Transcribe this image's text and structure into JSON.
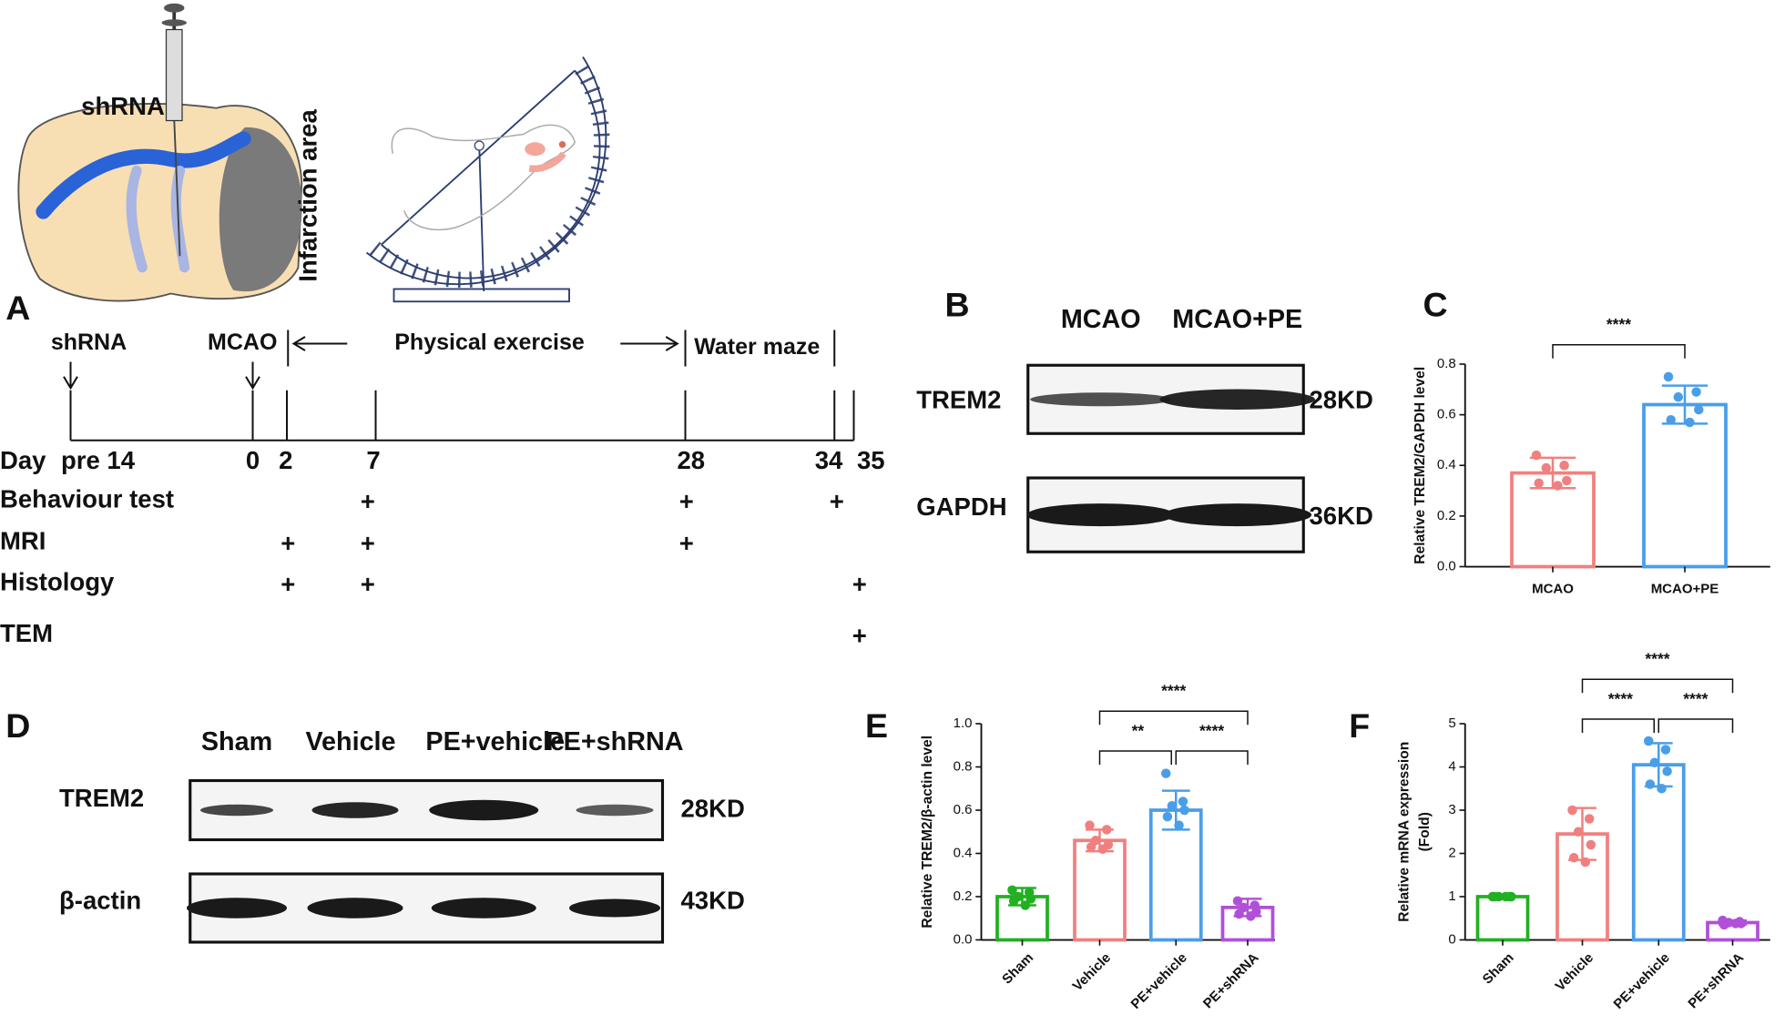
{
  "illustration": {
    "injection": "shRNA",
    "area": "Infarction area"
  },
  "timeline": {
    "label": "A",
    "day_label": "Day",
    "days": [
      "pre 14",
      "0",
      "2",
      "7",
      "28",
      "34",
      "35"
    ],
    "events": [
      "shRNA",
      "MCAO"
    ],
    "phases": [
      "Physical exercise",
      "Water maze"
    ],
    "mark": "+",
    "rows": [
      {
        "name": "Behaviour test",
        "days": [
          "7",
          "28",
          "34"
        ]
      },
      {
        "name": "MRI",
        "days": [
          "2",
          "7",
          "28"
        ]
      },
      {
        "name": "Histology",
        "days": [
          "2",
          "7",
          "35"
        ]
      },
      {
        "name": "TEM",
        "days": [
          "35"
        ]
      }
    ]
  },
  "blot_b": {
    "label": "B",
    "columns": [
      "MCAO",
      "MCAO+PE"
    ],
    "rows": [
      {
        "protein": "TREM2",
        "size": "28KD"
      },
      {
        "protein": "GAPDH",
        "size": "36KD"
      }
    ]
  },
  "blot_d": {
    "label": "D",
    "columns": [
      "Sham",
      "Vehicle",
      "PE+vehicle",
      "PE+shRNA"
    ],
    "rows": [
      {
        "protein": "TREM2",
        "size": "28KD"
      },
      {
        "protein": "β-actin",
        "size": "43KD"
      }
    ]
  },
  "chart_data": [
    {
      "type": "bar",
      "label": "C",
      "ylabel": [
        "Relative TREM2/GAPDH level"
      ],
      "categories": [
        "MCAO",
        "MCAO+PE"
      ],
      "colors": [
        "#f08080",
        "#4a9ee8"
      ],
      "values": [
        0.37,
        0.64
      ],
      "errors": [
        0.06,
        0.075
      ],
      "points": [
        [
          0.44,
          0.4,
          0.39,
          0.34,
          0.33,
          0.32
        ],
        [
          0.75,
          0.69,
          0.67,
          0.62,
          0.58,
          0.57
        ]
      ],
      "ylim": [
        0,
        0.8
      ],
      "yticks": [
        {
          "value": 0,
          "label": "0.0"
        },
        0.2,
        0.4,
        0.6,
        0.8
      ],
      "significance": [
        {
          "pair": [
            "MCAO",
            "MCAO+PE"
          ],
          "label": "****"
        }
      ]
    },
    {
      "type": "bar",
      "label": "E",
      "ylabel": [
        "Relative TREM2/β-actin level"
      ],
      "categories": [
        "Sham",
        "Vehicle",
        "PE+vehicle",
        "PE+shRNA"
      ],
      "colors": [
        "#22b022",
        "#f08080",
        "#4a9ee8",
        "#b050d8"
      ],
      "values": [
        0.2,
        0.46,
        0.6,
        0.15
      ],
      "errors": [
        0.04,
        0.05,
        0.09,
        0.04
      ],
      "points": [
        [
          0.23,
          0.22,
          0.2,
          0.19,
          0.18,
          0.16
        ],
        [
          0.53,
          0.51,
          0.46,
          0.44,
          0.43,
          0.42
        ],
        [
          0.77,
          0.64,
          0.62,
          0.6,
          0.57,
          0.53
        ],
        [
          0.18,
          0.16,
          0.15,
          0.13,
          0.12,
          0.11
        ]
      ],
      "ylim": [
        0,
        1
      ],
      "yticks": [
        {
          "value": 0,
          "label": "0.0"
        },
        0.2,
        0.4,
        0.6,
        0.8,
        {
          "value": 1,
          "label": "1.0"
        }
      ],
      "significance": [
        {
          "pair": [
            "Vehicle",
            "PE+vehicle"
          ],
          "label": "**"
        },
        {
          "pair": [
            "PE+vehicle",
            "PE+shRNA"
          ],
          "label": "****"
        },
        {
          "pair": [
            "Vehicle",
            "PE+shRNA"
          ],
          "label": "****"
        }
      ]
    },
    {
      "type": "bar",
      "label": "F",
      "ylabel": [
        "Relative mRNA expression",
        "(Fold)"
      ],
      "categories": [
        "Sham",
        "Vehicle",
        "PE+vehicle",
        "PE+shRNA"
      ],
      "colors": [
        "#22b022",
        "#f08080",
        "#4a9ee8",
        "#b050d8"
      ],
      "values": [
        1.0,
        2.45,
        4.05,
        0.4
      ],
      "errors": [
        0,
        0.6,
        0.5,
        0.05
      ],
      "points": [
        [
          1.0,
          1.0,
          1.0,
          1.0,
          1.0,
          1.0
        ],
        [
          3.0,
          2.8,
          2.5,
          2.2,
          1.9,
          1.8
        ],
        [
          4.6,
          4.4,
          4.1,
          3.9,
          3.6,
          3.5
        ],
        [
          0.45,
          0.42,
          0.4,
          0.38,
          0.35,
          0.38
        ]
      ],
      "ylim": [
        0,
        5
      ],
      "yticks": [
        0,
        1,
        2,
        3,
        4,
        5
      ],
      "significance": [
        {
          "pair": [
            "Vehicle",
            "PE+vehicle"
          ],
          "label": "****"
        },
        {
          "pair": [
            "PE+vehicle",
            "PE+shRNA"
          ],
          "label": "****"
        },
        {
          "pair": [
            "Vehicle",
            "PE+shRNA"
          ],
          "label": "****"
        }
      ]
    }
  ]
}
